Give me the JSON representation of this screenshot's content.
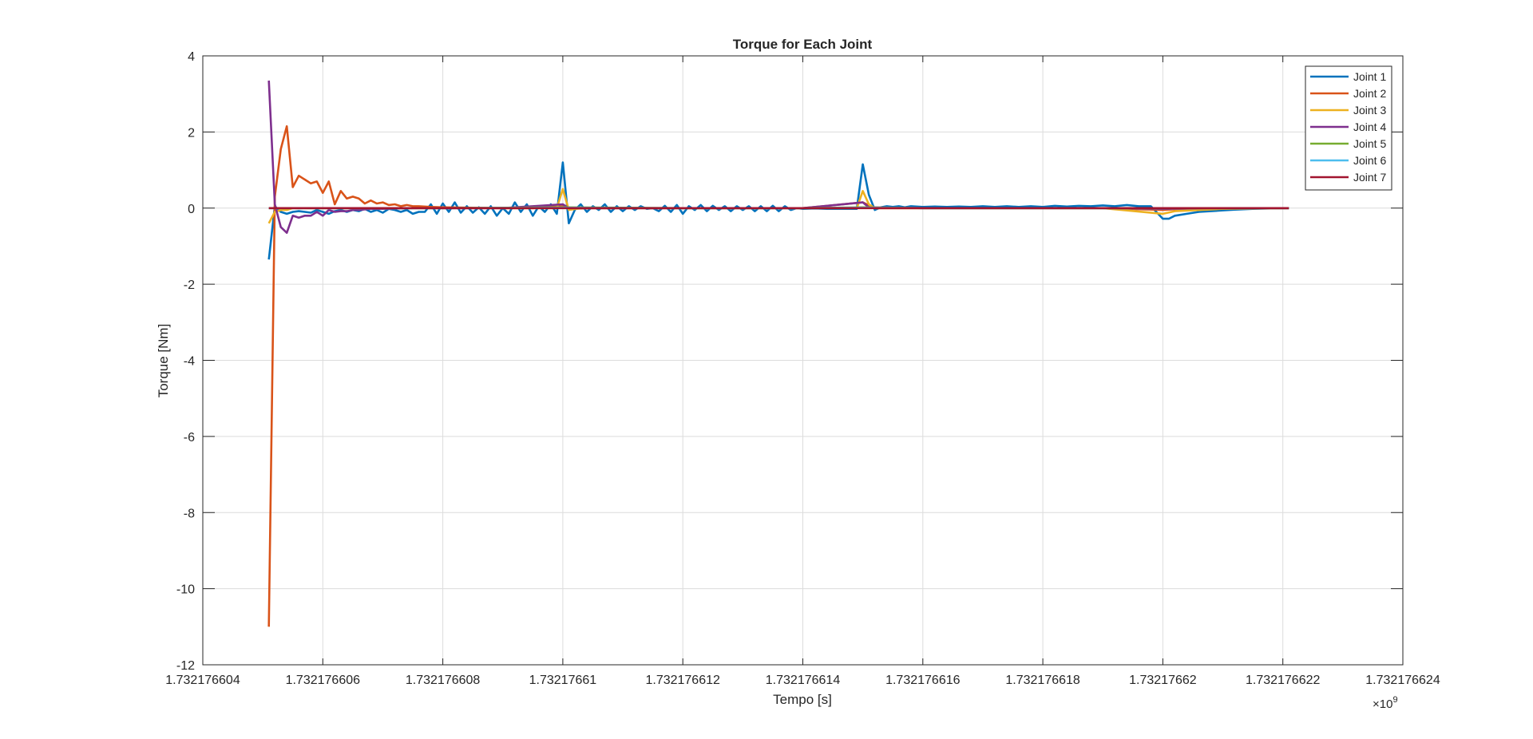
{
  "chart_data": {
    "type": "line",
    "title": "Torque for Each Joint",
    "xlabel": "Tempo [s]",
    "ylabel": "Torque [Nm]",
    "x_exponent_label": "×10",
    "x_exponent_power": "9",
    "xlim": [
      1.732176604,
      1.732176624
    ],
    "ylim": [
      -12,
      4
    ],
    "xticks": [
      1.732176604,
      1.732176606,
      1.732176608,
      1.73217661,
      1.732176612,
      1.732176614,
      1.732176616,
      1.732176618,
      1.73217662,
      1.732176622,
      1.732176624
    ],
    "xtick_labels": [
      "1.732176604",
      "1.732176606",
      "1.732176608",
      "1.73217661",
      "1.732176612",
      "1.732176614",
      "1.732176616",
      "1.732176618",
      "1.73217662",
      "1.732176622",
      "1.732176624"
    ],
    "yticks": [
      4,
      2,
      0,
      -2,
      -4,
      -6,
      -8,
      -10,
      -12
    ],
    "ytick_labels": [
      "4",
      "2",
      "0",
      "-2",
      "-4",
      "-6",
      "-8",
      "-10",
      "-12"
    ],
    "grid": true,
    "legend_position": "top-right",
    "x_units": "offset from 1.732176604 ×10^9 s",
    "series": [
      {
        "name": "Joint 1",
        "color": "#0072BD",
        "points": [
          [
            1.1,
            -1.35
          ],
          [
            1.2,
            0.05
          ],
          [
            1.3,
            -0.1
          ],
          [
            1.4,
            -0.15
          ],
          [
            1.5,
            -0.1
          ],
          [
            1.6,
            -0.08
          ],
          [
            1.7,
            -0.1
          ],
          [
            1.8,
            -0.12
          ],
          [
            1.9,
            -0.05
          ],
          [
            2.0,
            -0.1
          ],
          [
            2.1,
            -0.15
          ],
          [
            2.2,
            -0.08
          ],
          [
            2.3,
            -0.05
          ],
          [
            2.4,
            -0.1
          ],
          [
            2.5,
            -0.05
          ],
          [
            2.6,
            -0.08
          ],
          [
            2.7,
            -0.02
          ],
          [
            2.8,
            -0.1
          ],
          [
            2.9,
            -0.05
          ],
          [
            3.0,
            -0.12
          ],
          [
            3.1,
            -0.02
          ],
          [
            3.2,
            -0.05
          ],
          [
            3.3,
            -0.1
          ],
          [
            3.4,
            -0.05
          ],
          [
            3.5,
            -0.15
          ],
          [
            3.6,
            -0.1
          ],
          [
            3.7,
            -0.1
          ],
          [
            3.8,
            0.1
          ],
          [
            3.9,
            -0.15
          ],
          [
            4.0,
            0.12
          ],
          [
            4.1,
            -0.1
          ],
          [
            4.2,
            0.15
          ],
          [
            4.3,
            -0.12
          ],
          [
            4.4,
            0.05
          ],
          [
            4.5,
            -0.12
          ],
          [
            4.6,
            0.02
          ],
          [
            4.7,
            -0.15
          ],
          [
            4.8,
            0.05
          ],
          [
            4.9,
            -0.2
          ],
          [
            5.0,
            0.0
          ],
          [
            5.1,
            -0.15
          ],
          [
            5.2,
            0.15
          ],
          [
            5.3,
            -0.1
          ],
          [
            5.4,
            0.1
          ],
          [
            5.5,
            -0.2
          ],
          [
            5.6,
            0.05
          ],
          [
            5.7,
            -0.1
          ],
          [
            5.8,
            0.1
          ],
          [
            5.9,
            -0.15
          ],
          [
            6.0,
            1.2
          ],
          [
            6.1,
            -0.4
          ],
          [
            6.2,
            -0.05
          ],
          [
            6.3,
            0.1
          ],
          [
            6.4,
            -0.1
          ],
          [
            6.5,
            0.05
          ],
          [
            6.6,
            -0.05
          ],
          [
            6.7,
            0.1
          ],
          [
            6.8,
            -0.1
          ],
          [
            6.9,
            0.05
          ],
          [
            7.0,
            -0.08
          ],
          [
            7.1,
            0.05
          ],
          [
            7.2,
            -0.05
          ],
          [
            7.3,
            0.05
          ],
          [
            7.4,
            -0.02
          ],
          [
            7.5,
            0.0
          ],
          [
            7.6,
            -0.08
          ],
          [
            7.7,
            0.06
          ],
          [
            7.8,
            -0.1
          ],
          [
            7.9,
            0.08
          ],
          [
            8.0,
            -0.15
          ],
          [
            8.1,
            0.05
          ],
          [
            8.2,
            -0.05
          ],
          [
            8.3,
            0.08
          ],
          [
            8.4,
            -0.08
          ],
          [
            8.5,
            0.06
          ],
          [
            8.6,
            -0.05
          ],
          [
            8.7,
            0.05
          ],
          [
            8.8,
            -0.08
          ],
          [
            8.9,
            0.05
          ],
          [
            9.0,
            -0.05
          ],
          [
            9.1,
            0.05
          ],
          [
            9.2,
            -0.08
          ],
          [
            9.3,
            0.05
          ],
          [
            9.4,
            -0.08
          ],
          [
            9.5,
            0.06
          ],
          [
            9.6,
            -0.08
          ],
          [
            9.7,
            0.05
          ],
          [
            9.8,
            -0.05
          ],
          [
            9.9,
            0.0
          ],
          [
            10.0,
            -0.02
          ],
          [
            10.2,
            -0.01
          ],
          [
            10.4,
            -0.02
          ],
          [
            10.6,
            -0.02
          ],
          [
            10.8,
            -0.02
          ],
          [
            10.9,
            -0.02
          ],
          [
            11.0,
            1.15
          ],
          [
            11.1,
            0.35
          ],
          [
            11.2,
            -0.05
          ],
          [
            11.3,
            0.02
          ],
          [
            11.4,
            0.05
          ],
          [
            11.5,
            0.03
          ],
          [
            11.6,
            0.05
          ],
          [
            11.7,
            0.02
          ],
          [
            11.8,
            0.05
          ],
          [
            12.0,
            0.03
          ],
          [
            12.2,
            0.04
          ],
          [
            12.4,
            0.03
          ],
          [
            12.6,
            0.04
          ],
          [
            12.8,
            0.03
          ],
          [
            13.0,
            0.05
          ],
          [
            13.2,
            0.03
          ],
          [
            13.4,
            0.05
          ],
          [
            13.6,
            0.03
          ],
          [
            13.8,
            0.05
          ],
          [
            14.0,
            0.03
          ],
          [
            14.2,
            0.06
          ],
          [
            14.4,
            0.04
          ],
          [
            14.6,
            0.06
          ],
          [
            14.8,
            0.05
          ],
          [
            15.0,
            0.07
          ],
          [
            15.2,
            0.05
          ],
          [
            15.4,
            0.08
          ],
          [
            15.6,
            0.05
          ],
          [
            15.8,
            0.05
          ],
          [
            16.0,
            -0.28
          ],
          [
            16.1,
            -0.28
          ],
          [
            16.2,
            -0.2
          ],
          [
            16.4,
            -0.15
          ],
          [
            16.6,
            -0.1
          ],
          [
            16.8,
            -0.08
          ],
          [
            17.0,
            -0.06
          ],
          [
            17.2,
            -0.04
          ],
          [
            17.5,
            -0.02
          ],
          [
            17.8,
            -0.01
          ],
          [
            18.1,
            0.0
          ]
        ]
      },
      {
        "name": "Joint 2",
        "color": "#D95319",
        "points": [
          [
            1.1,
            -11.0
          ],
          [
            1.2,
            0.3
          ],
          [
            1.3,
            1.55
          ],
          [
            1.4,
            2.15
          ],
          [
            1.5,
            0.55
          ],
          [
            1.6,
            0.85
          ],
          [
            1.7,
            0.75
          ],
          [
            1.8,
            0.65
          ],
          [
            1.9,
            0.7
          ],
          [
            2.0,
            0.4
          ],
          [
            2.1,
            0.7
          ],
          [
            2.2,
            0.1
          ],
          [
            2.3,
            0.45
          ],
          [
            2.4,
            0.25
          ],
          [
            2.5,
            0.3
          ],
          [
            2.6,
            0.25
          ],
          [
            2.7,
            0.12
          ],
          [
            2.8,
            0.2
          ],
          [
            2.9,
            0.12
          ],
          [
            3.0,
            0.15
          ],
          [
            3.1,
            0.08
          ],
          [
            3.2,
            0.1
          ],
          [
            3.3,
            0.05
          ],
          [
            3.4,
            0.08
          ],
          [
            3.5,
            0.05
          ],
          [
            3.6,
            0.05
          ],
          [
            3.8,
            0.03
          ],
          [
            4.0,
            0.02
          ],
          [
            4.5,
            0.01
          ],
          [
            5.0,
            0.0
          ],
          [
            5.5,
            0.0
          ],
          [
            6.0,
            0.05
          ],
          [
            6.1,
            -0.02
          ],
          [
            6.5,
            0.0
          ],
          [
            7.0,
            0.0
          ],
          [
            8.0,
            0.0
          ],
          [
            9.0,
            0.0
          ],
          [
            10.0,
            0.0
          ],
          [
            11.0,
            0.15
          ],
          [
            11.2,
            0.0
          ],
          [
            12.0,
            0.0
          ],
          [
            13.0,
            0.0
          ],
          [
            14.0,
            0.0
          ],
          [
            15.0,
            0.0
          ],
          [
            16.0,
            -0.05
          ],
          [
            16.2,
            -0.03
          ],
          [
            17.0,
            -0.01
          ],
          [
            18.1,
            0.0
          ]
        ]
      },
      {
        "name": "Joint 3",
        "color": "#EDB120",
        "points": [
          [
            1.1,
            -0.4
          ],
          [
            1.2,
            -0.1
          ],
          [
            1.3,
            -0.05
          ],
          [
            1.4,
            -0.05
          ],
          [
            1.5,
            0.0
          ],
          [
            2.0,
            0.0
          ],
          [
            3.0,
            0.0
          ],
          [
            4.0,
            0.0
          ],
          [
            5.0,
            0.0
          ],
          [
            5.9,
            0.0
          ],
          [
            6.0,
            0.5
          ],
          [
            6.1,
            -0.05
          ],
          [
            6.3,
            0.0
          ],
          [
            7.0,
            0.0
          ],
          [
            8.0,
            0.0
          ],
          [
            9.0,
            0.0
          ],
          [
            10.0,
            0.0
          ],
          [
            10.9,
            0.0
          ],
          [
            11.0,
            0.45
          ],
          [
            11.1,
            0.1
          ],
          [
            11.2,
            0.0
          ],
          [
            12.0,
            0.0
          ],
          [
            13.0,
            0.0
          ],
          [
            14.0,
            0.0
          ],
          [
            15.0,
            0.0
          ],
          [
            16.0,
            -0.15
          ],
          [
            16.2,
            -0.08
          ],
          [
            17.0,
            -0.02
          ],
          [
            18.1,
            0.0
          ]
        ]
      },
      {
        "name": "Joint 4",
        "color": "#7E2F8E",
        "points": [
          [
            1.1,
            3.35
          ],
          [
            1.2,
            0.1
          ],
          [
            1.3,
            -0.5
          ],
          [
            1.4,
            -0.65
          ],
          [
            1.5,
            -0.2
          ],
          [
            1.6,
            -0.25
          ],
          [
            1.7,
            -0.2
          ],
          [
            1.8,
            -0.2
          ],
          [
            1.9,
            -0.1
          ],
          [
            2.0,
            -0.2
          ],
          [
            2.1,
            -0.05
          ],
          [
            2.2,
            -0.1
          ],
          [
            2.3,
            -0.08
          ],
          [
            2.4,
            -0.08
          ],
          [
            2.5,
            -0.05
          ],
          [
            2.6,
            -0.05
          ],
          [
            2.8,
            -0.02
          ],
          [
            3.0,
            -0.02
          ],
          [
            3.5,
            0.0
          ],
          [
            4.0,
            0.0
          ],
          [
            5.0,
            0.0
          ],
          [
            6.0,
            0.1
          ],
          [
            6.1,
            0.0
          ],
          [
            7.0,
            0.0
          ],
          [
            8.0,
            0.0
          ],
          [
            9.0,
            0.0
          ],
          [
            10.0,
            0.0
          ],
          [
            11.0,
            0.15
          ],
          [
            11.1,
            0.02
          ],
          [
            12.0,
            0.0
          ],
          [
            13.0,
            0.0
          ],
          [
            14.0,
            0.0
          ],
          [
            15.0,
            0.0
          ],
          [
            16.0,
            -0.02
          ],
          [
            17.0,
            0.0
          ],
          [
            18.1,
            0.0
          ]
        ]
      },
      {
        "name": "Joint 5",
        "color": "#77AC30",
        "points": [
          [
            1.1,
            0.0
          ],
          [
            2.0,
            0.0
          ],
          [
            4.0,
            0.0
          ],
          [
            6.0,
            0.02
          ],
          [
            8.0,
            0.0
          ],
          [
            10.0,
            0.0
          ],
          [
            11.0,
            0.02
          ],
          [
            12.0,
            0.0
          ],
          [
            14.0,
            0.0
          ],
          [
            16.0,
            0.0
          ],
          [
            18.1,
            0.0
          ]
        ]
      },
      {
        "name": "Joint 6",
        "color": "#4DBEEE",
        "points": [
          [
            1.1,
            0.0
          ],
          [
            2.0,
            0.0
          ],
          [
            4.0,
            0.0
          ],
          [
            6.0,
            0.01
          ],
          [
            8.0,
            0.0
          ],
          [
            10.0,
            0.0
          ],
          [
            11.0,
            0.01
          ],
          [
            12.0,
            0.0
          ],
          [
            14.0,
            0.0
          ],
          [
            16.0,
            0.0
          ],
          [
            18.1,
            0.0
          ]
        ]
      },
      {
        "name": "Joint 7",
        "color": "#A2142F",
        "points": [
          [
            1.1,
            0.0
          ],
          [
            2.0,
            0.0
          ],
          [
            4.0,
            0.0
          ],
          [
            6.0,
            0.0
          ],
          [
            8.0,
            0.0
          ],
          [
            10.0,
            0.0
          ],
          [
            12.0,
            0.0
          ],
          [
            14.0,
            0.0
          ],
          [
            16.0,
            0.0
          ],
          [
            18.1,
            0.0
          ]
        ]
      }
    ]
  }
}
